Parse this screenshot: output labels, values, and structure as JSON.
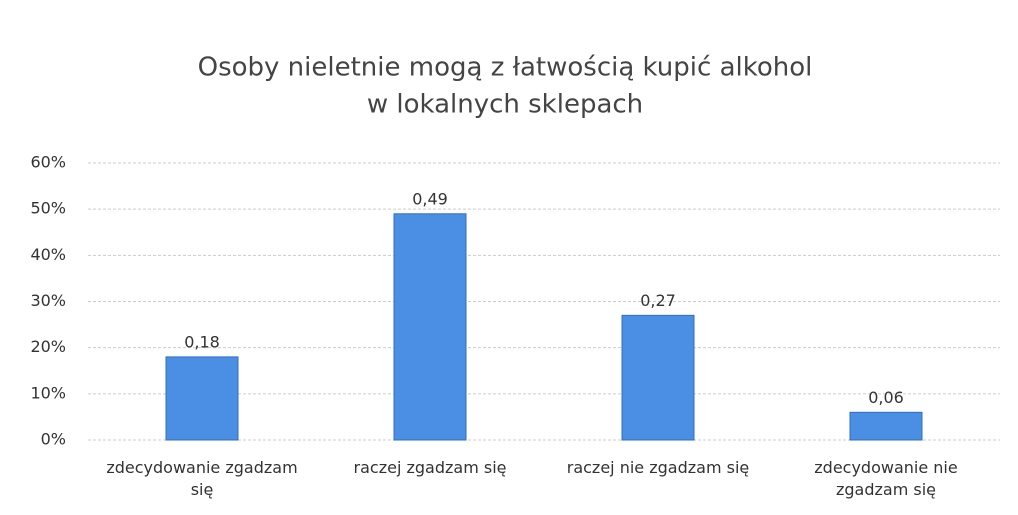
{
  "chart_data": {
    "type": "bar",
    "title": [
      "Osoby nieletnie mogą z łatwością kupić alkohol",
      "w lokalnych sklepach"
    ],
    "categories": [
      "zdecydowanie zgadzam się",
      "raczej zgadzam się",
      "raczej nie zgadzam się",
      "zdecydowanie nie zgadzam się"
    ],
    "values": [
      18,
      49,
      27,
      6
    ],
    "value_labels": [
      "0,18",
      "0,49",
      "0,27",
      "0,06"
    ],
    "color": "#4a8fe4",
    "ylim": [
      0,
      60
    ],
    "yticks": [
      {
        "value": 0,
        "label": "0%"
      },
      {
        "value": 10,
        "label": "10%"
      },
      {
        "value": 20,
        "label": "20%"
      },
      {
        "value": 30,
        "label": "30%"
      },
      {
        "value": 40,
        "label": "40%"
      },
      {
        "value": 50,
        "label": "50%"
      },
      {
        "value": 60,
        "label": "60%"
      }
    ],
    "grid": true
  }
}
